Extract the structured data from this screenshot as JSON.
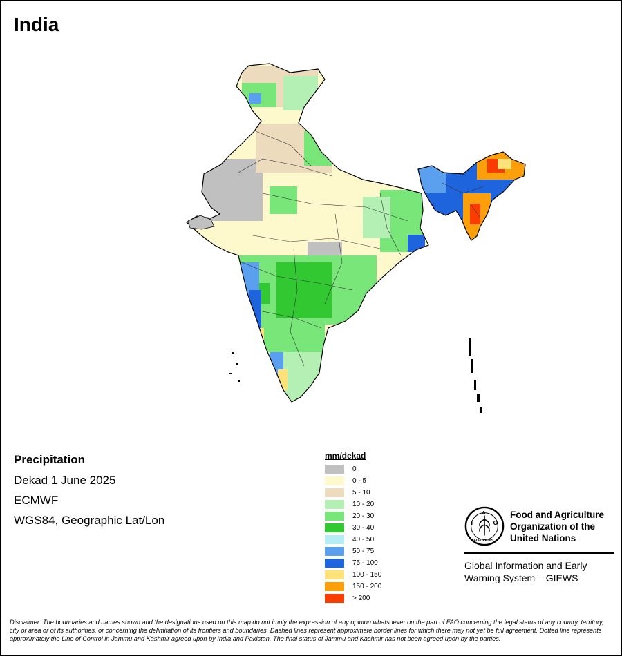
{
  "title": "India",
  "info": {
    "heading": "Precipitation",
    "period": "Dekad 1 June 2025",
    "source": "ECMWF",
    "projection": "WGS84, Geographic Lat/Lon"
  },
  "legend": {
    "unit": "mm/dekad",
    "classes": [
      {
        "label": "0",
        "color": "#c0c0c0"
      },
      {
        "label": "0 - 5",
        "color": "#fdf9cc"
      },
      {
        "label": "5 - 10",
        "color": "#ecdcbd"
      },
      {
        "label": "10 - 20",
        "color": "#b4f0b4"
      },
      {
        "label": "20 - 30",
        "color": "#78e678"
      },
      {
        "label": "30 - 40",
        "color": "#32c832"
      },
      {
        "label": "40 - 50",
        "color": "#b4eef4"
      },
      {
        "label": "50 - 75",
        "color": "#5aa0ee"
      },
      {
        "label": "75 - 100",
        "color": "#1e64dc"
      },
      {
        "label": "100 - 150",
        "color": "#fde27a"
      },
      {
        "label": "150 - 200",
        "color": "#fba00a"
      },
      {
        "label": "> 200",
        "color": "#fa3c00"
      }
    ]
  },
  "organization": {
    "name_line1": "Food and Agriculture",
    "name_line2": "Organization of the",
    "name_line3": "United Nations",
    "emblem_text": "FIAT PANIS",
    "giews_line1": "Global Information and Early",
    "giews_line2": "Warning System – GIEWS"
  },
  "disclaimer": "Disclaimer: The boundaries and names shown and the designations used on this map do not imply the expression of any opinion whatsoever on the part of FAO concerning the legal status of any country, territory, city or area or of its authorities, or concerning the delimitation of its frontiers and boundaries. Dashed lines represent approximate border lines for which there may not yet be full agreement. Dotted line represents approximately the Line of Control in Jammu and Kashmir agreed upon by India and Pakistan. The final status of Jammu and Kashmir has not been agreed upon by the parties."
}
